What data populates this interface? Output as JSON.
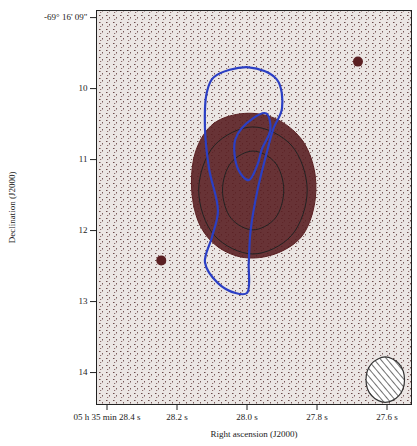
{
  "chart_data": {
    "type": "contour",
    "xlabel": "Right ascension (J2000)",
    "ylabel": "Declination (J2000)",
    "xlim": [
      28.43,
      27.53
    ],
    "ylim": [
      8.9,
      14.45
    ],
    "xticks": [
      {
        "value": 28.4,
        "label": "05 h 35 min 28.4 s"
      },
      {
        "value": 28.2,
        "label": "28.2 s"
      },
      {
        "value": 28.0,
        "label": "28.0 s"
      },
      {
        "value": 27.8,
        "label": "27.8 s"
      },
      {
        "value": 27.6,
        "label": "27.6 s"
      }
    ],
    "yticks": [
      {
        "value": 9,
        "label": "-69° 16' 09\""
      },
      10,
      11,
      12,
      13,
      14
    ],
    "emission": {
      "color": "#5a1f22",
      "x": [
        28.145,
        28.095,
        28.008,
        27.92,
        27.845,
        27.808,
        27.808,
        27.845,
        27.92,
        28.008,
        28.083,
        28.133,
        28.158
      ],
      "y": [
        10.86,
        10.49,
        10.35,
        10.42,
        10.71,
        11.14,
        11.65,
        12.09,
        12.33,
        12.38,
        12.23,
        11.94,
        11.43
      ]
    },
    "contours": [
      {
        "color": "#222222",
        "x": [
          27.983,
          27.873,
          27.828,
          27.873,
          27.983,
          28.093,
          28.138,
          28.093
        ],
        "y": [
          10.54,
          10.8,
          11.43,
          12.07,
          12.33,
          12.07,
          11.43,
          10.8
        ]
      },
      {
        "color": "#222222",
        "x": [
          27.983,
          27.92,
          27.895,
          27.92,
          27.983,
          28.045,
          28.07,
          28.045
        ],
        "y": [
          10.88,
          11.04,
          11.43,
          11.83,
          11.99,
          11.83,
          11.43,
          11.04
        ]
      },
      {
        "color": "#2b3fc4",
        "x": [
          28.095,
          27.995,
          27.915,
          27.9,
          27.925,
          27.945,
          27.97,
          27.99,
          27.995,
          28.0,
          28.033,
          28.083,
          28.12,
          28.1,
          28.083,
          28.108,
          28.12,
          28.115
        ],
        "y": [
          9.84,
          9.7,
          9.87,
          10.28,
          10.57,
          10.93,
          11.43,
          12.01,
          12.45,
          12.88,
          12.88,
          12.74,
          12.45,
          12.09,
          11.72,
          11.14,
          10.57,
          10.06
        ]
      },
      {
        "color": "#2b3fc4",
        "x": [
          28.033,
          27.983,
          27.945,
          27.933,
          27.958,
          27.97,
          27.995,
          28.025
        ],
        "y": [
          10.71,
          10.42,
          10.35,
          10.57,
          10.86,
          11.07,
          11.29,
          11.14
        ]
      }
    ],
    "point_sources": {
      "color": "#5a1f22",
      "x": [
        27.683,
        28.245
      ],
      "y": [
        9.62,
        12.42
      ]
    },
    "beam": {
      "x": [
        27.55,
        27.566,
        27.605,
        27.644,
        27.66,
        27.644,
        27.605,
        27.566
      ],
      "y": [
        14.1,
        13.874,
        13.78,
        13.874,
        14.1,
        14.326,
        14.42,
        14.326
      ]
    }
  }
}
